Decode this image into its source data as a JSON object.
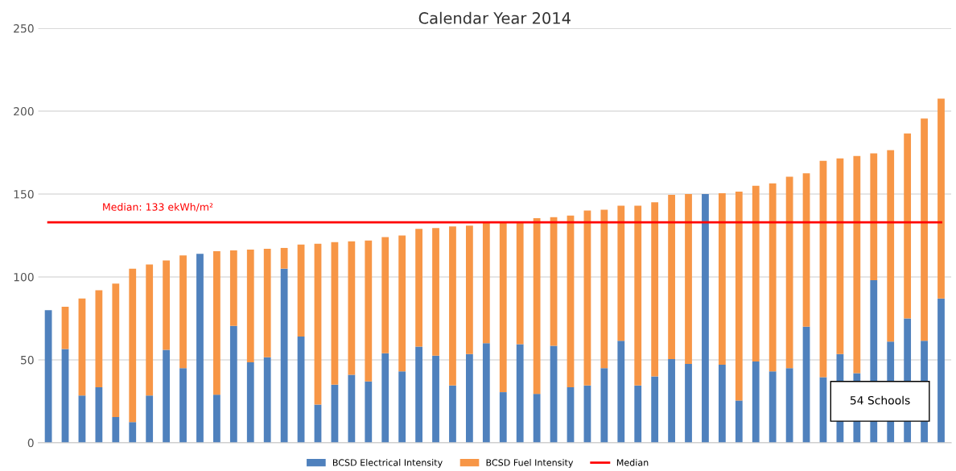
{
  "chart_data": {
    "type": "bar",
    "title": "Calendar Year 2014",
    "stacked": true,
    "categories": [
      null,
      null,
      null,
      null,
      null,
      null,
      null,
      null,
      null,
      null,
      null,
      null,
      null,
      null,
      null,
      null,
      null,
      null,
      null,
      null,
      null,
      null,
      null,
      null,
      null,
      null,
      null,
      null,
      null,
      null,
      null,
      null,
      null,
      null,
      null,
      null,
      null,
      null,
      null,
      null,
      null,
      null,
      null,
      null,
      null,
      null,
      null,
      null,
      null,
      null,
      null,
      null,
      null,
      null
    ],
    "series": [
      {
        "name": "BCSD Electrical Intensity",
        "color": "#4f81bd",
        "values": [
          80,
          56.5,
          28.5,
          33.5,
          15.5,
          12.5,
          28.5,
          56,
          45,
          114,
          29,
          70.5,
          48.5,
          51.5,
          105,
          64,
          23,
          35,
          41,
          37,
          54,
          43,
          58,
          52.5,
          34.5,
          53.5,
          60,
          30.5,
          59.5,
          29.5,
          58.5,
          33.5,
          34.5,
          45,
          61.5,
          34.5,
          40,
          50.5,
          47.5,
          150,
          47,
          25.5,
          49,
          43,
          45,
          70,
          39.5,
          53.5,
          42,
          98,
          61,
          75,
          61.5,
          87
        ]
      },
      {
        "name": "BCSD Fuel Intensity",
        "color": "#f79646",
        "values": [
          0,
          25.5,
          58.5,
          58.5,
          80.5,
          92.5,
          79,
          54,
          68,
          0,
          86.5,
          45.5,
          68,
          65.5,
          12.5,
          55.5,
          97,
          86,
          80.5,
          85,
          70,
          82,
          71,
          77,
          96,
          77.5,
          73,
          102.5,
          73.5,
          106,
          77.5,
          103.5,
          105.5,
          95.5,
          81.5,
          108.5,
          105,
          99,
          102.5,
          0,
          103.5,
          126,
          106,
          113.5,
          115.5,
          92.5,
          130.5,
          118,
          131,
          76.5,
          115.5,
          111.5,
          134,
          120.5
        ]
      },
      {
        "name": "Median",
        "type": "line",
        "color": "#ff0000",
        "values": [
          133,
          133,
          133,
          133,
          133,
          133,
          133,
          133,
          133,
          133,
          133,
          133,
          133,
          133,
          133,
          133,
          133,
          133,
          133,
          133,
          133,
          133,
          133,
          133,
          133,
          133,
          133,
          133,
          133,
          133,
          133,
          133,
          133,
          133,
          133,
          133,
          133,
          133,
          133,
          133,
          133,
          133,
          133,
          133,
          133,
          133,
          133,
          133,
          133,
          133,
          133,
          133,
          133,
          133
        ]
      }
    ],
    "ylim": [
      0,
      250
    ],
    "yticks": [
      0,
      50,
      100,
      150,
      200,
      250
    ],
    "grid": "y",
    "legend": "bottom",
    "annotations": [
      "Median: 133 ekWh/m²",
      "54 Schools"
    ]
  }
}
